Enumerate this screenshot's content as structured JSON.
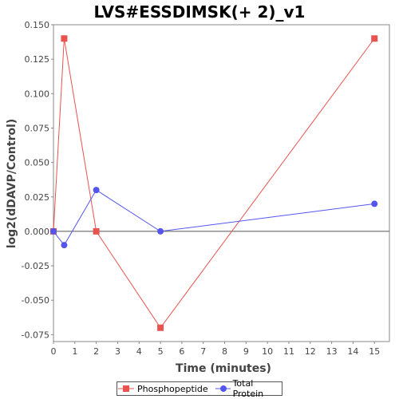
{
  "chart_data": {
    "type": "line",
    "title": "LVS#ESSDIMSK(+ 2)_v1",
    "xlabel": "Time (minutes)",
    "ylabel": "log2(dDAVP/Control)",
    "xlim": [
      0,
      15.7
    ],
    "ylim": [
      -0.08,
      0.15
    ],
    "x_ticks": [
      0,
      1,
      2,
      3,
      4,
      5,
      6,
      7,
      8,
      9,
      10,
      11,
      12,
      13,
      14,
      15
    ],
    "y_ticks": [
      -0.075,
      -0.05,
      -0.025,
      0.0,
      0.025,
      0.05,
      0.075,
      0.1,
      0.125,
      0.15
    ],
    "y_tick_labels": [
      "-0.075",
      "-0.050",
      "-0.025",
      "0.000",
      "0.025",
      "0.050",
      "0.075",
      "0.100",
      "0.125",
      "0.150"
    ],
    "zero_line": true,
    "grid": false,
    "legend_position": "bottom",
    "series": [
      {
        "name": "Phosphopeptide",
        "color": "#e8524f",
        "marker": "square",
        "x": [
          0,
          0.5,
          2,
          5,
          15
        ],
        "y": [
          0.0,
          0.14,
          0.0,
          -0.07,
          0.14
        ]
      },
      {
        "name": "Total Protein",
        "color": "#5555ee",
        "marker": "circle",
        "x": [
          0,
          0.5,
          2,
          5,
          15
        ],
        "y": [
          0.0,
          -0.01,
          0.03,
          0.0,
          0.02
        ]
      }
    ]
  }
}
